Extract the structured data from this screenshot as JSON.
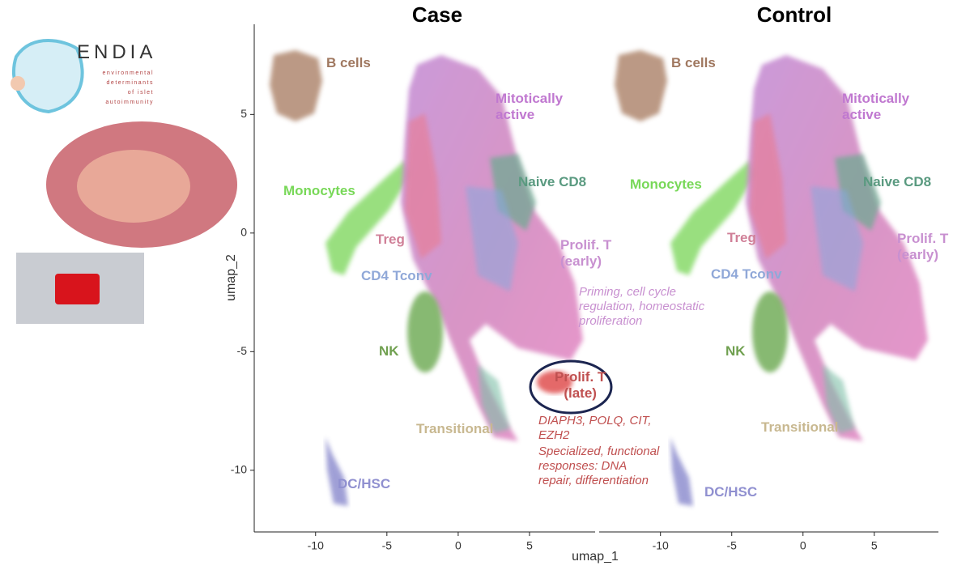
{
  "logo": {
    "title": "ENDIA",
    "subtitle": [
      "environmental",
      "determinants",
      "of islet",
      "autoimmunity"
    ]
  },
  "chart_data": [
    {
      "type": "scatter",
      "title": "Case",
      "xlabel": "umap_1",
      "ylabel": "umap_2",
      "xlim": [
        -14.3,
        9.6
      ],
      "ylim": [
        -12.6,
        8.8
      ],
      "xticks": [
        -10,
        -5,
        0,
        5
      ],
      "yticks": [
        -10,
        -5,
        0,
        5
      ],
      "clusters": [
        "B cells",
        "Mitotically\nactive",
        "Naive CD8",
        "Monocytes",
        "Treg",
        "Prolif. T\n(early)",
        "CD4 Tconv",
        "NK",
        "Prolif. T\n(late)",
        "Transitional",
        "DC/HSC"
      ],
      "annotations": [
        "Priming, cell cycle\nregulation, homeostatic\nproliferation",
        "DIAPH3, POLQ, CIT,\nEZH2",
        "Specialized, functional\nresponses: DNA\nrepair, differentiation"
      ]
    },
    {
      "type": "scatter",
      "title": "Control",
      "xlim": [
        -14.3,
        9.5
      ],
      "ylim": [
        -12.6,
        8.8
      ],
      "xticks": [
        -10,
        -5,
        0,
        5
      ],
      "clusters": [
        "B cells",
        "Mitotically\nactive",
        "Naive CD8",
        "Monocytes",
        "Treg",
        "Prolif. T\n(early)",
        "CD4 Tconv",
        "NK",
        "Transitional",
        "DC/HSC"
      ]
    }
  ]
}
